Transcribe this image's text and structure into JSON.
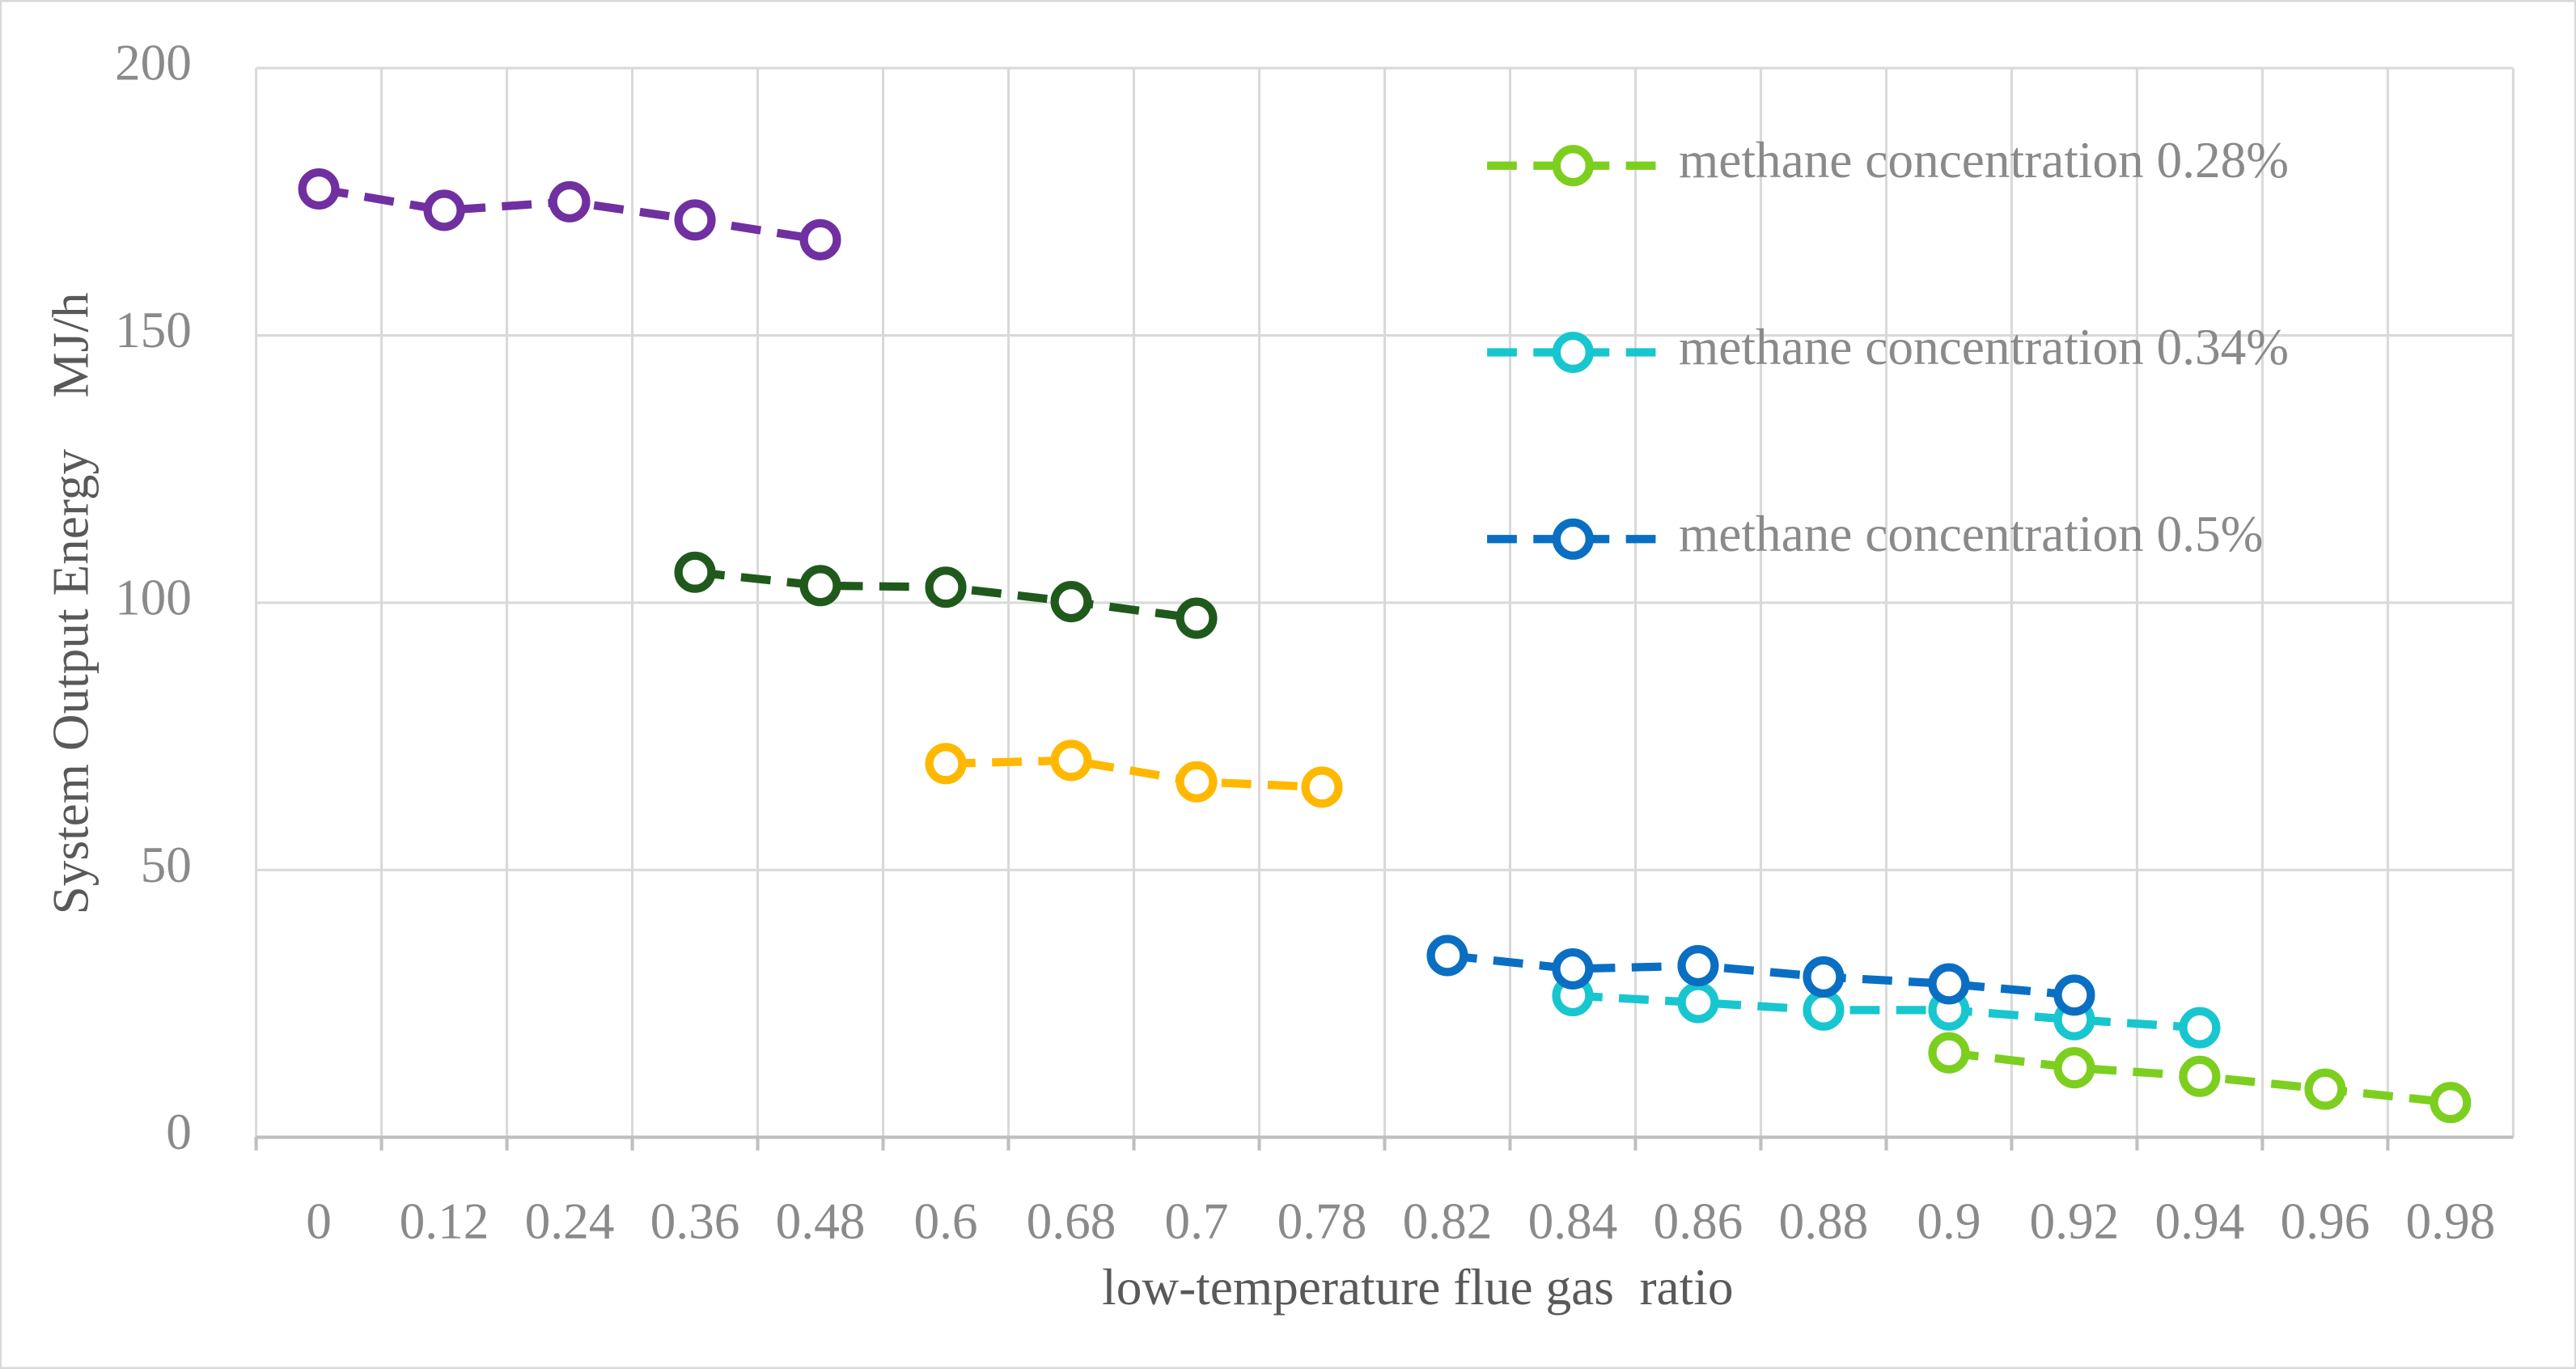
{
  "chart_data": {
    "type": "line",
    "xlabel": "low-temperature flue gas  ratio",
    "ylabel": "System Output Energy    MJ/h",
    "categories": [
      "0",
      "0.12",
      "0.24",
      "0.36",
      "0.48",
      "0.6",
      "0.68",
      "0.7",
      "0.78",
      "0.82",
      "0.84",
      "0.86",
      "0.88",
      "0.9",
      "0.92",
      "0.94",
      "0.96",
      "0.98"
    ],
    "series": [
      {
        "color": "#7030a0",
        "values": [
          177.4,
          173.4,
          175,
          171.6,
          167.9,
          null,
          null,
          null,
          null,
          null,
          null,
          null,
          null,
          null,
          null,
          null,
          null,
          null
        ]
      },
      {
        "color": "#1f5a1c",
        "values": [
          null,
          null,
          null,
          105.7,
          103.2,
          102.9,
          100.2,
          97.1,
          null,
          null,
          null,
          null,
          null,
          null,
          null,
          null,
          null,
          null
        ]
      },
      {
        "color": "#ffb800",
        "values": [
          null,
          null,
          null,
          null,
          null,
          69.9,
          70.5,
          66.5,
          65.5,
          null,
          null,
          null,
          null,
          null,
          null,
          null,
          null,
          null
        ]
      },
      {
        "name": "methane concentration 0.28%",
        "color": "#7ccf1f",
        "values": [
          null,
          null,
          null,
          null,
          null,
          null,
          null,
          null,
          null,
          null,
          null,
          null,
          null,
          15.8,
          13,
          11.4,
          9,
          6.5
        ]
      },
      {
        "name": "methane concentration 0.34%",
        "color": "#18c6cf",
        "values": [
          null,
          null,
          null,
          null,
          null,
          null,
          null,
          null,
          null,
          null,
          26.5,
          25.2,
          23.8,
          23.8,
          22,
          20.5,
          null,
          null
        ]
      },
      {
        "name": "methane concentration 0.5%",
        "color": "#0a6fc2",
        "values": [
          null,
          null,
          null,
          null,
          null,
          null,
          null,
          null,
          null,
          34,
          31.5,
          32.1,
          30,
          28.7,
          26.6,
          null,
          null,
          null
        ]
      }
    ],
    "ylim": [
      0,
      200
    ],
    "yticks": [
      0,
      50,
      100,
      150,
      200
    ],
    "grid": true,
    "legend": "upper right"
  }
}
